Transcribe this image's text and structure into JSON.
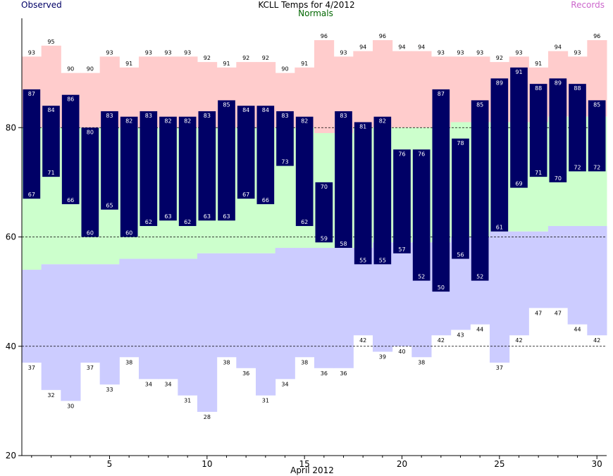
{
  "header": {
    "title": "KCLL Temps for 4/2012",
    "observed_label": "Observed",
    "normals_label": "Normals",
    "records_label": "Records"
  },
  "colors": {
    "observed": "#000066",
    "normals_text": "#006600",
    "records_text": "#cc66cc",
    "record_high_band": "#ffcccc",
    "normal_band": "#ccffcc",
    "record_low_band": "#ccccff",
    "observed_label_text": "#ffffff"
  },
  "chart_data": {
    "type": "bar",
    "title": "KCLL Temps for 4/2012",
    "xlabel": "April 2012",
    "ylabel": "",
    "x": [
      1,
      2,
      3,
      4,
      5,
      6,
      7,
      8,
      9,
      10,
      11,
      12,
      13,
      14,
      15,
      16,
      17,
      18,
      19,
      20,
      21,
      22,
      23,
      24,
      25,
      26,
      27,
      28,
      29,
      30
    ],
    "xlim": [
      0.5,
      30.5
    ],
    "ylim": [
      20,
      100
    ],
    "x_ticks": [
      5,
      10,
      15,
      20,
      25,
      30
    ],
    "y_ticks": [
      20,
      40,
      60,
      80
    ],
    "gridlines_y": [
      40,
      60,
      80
    ],
    "series": [
      {
        "name": "Observed",
        "kind": "range",
        "high": [
          87,
          84,
          86,
          80,
          83,
          82,
          83,
          82,
          82,
          83,
          85,
          84,
          84,
          83,
          82,
          70,
          83,
          81,
          82,
          76,
          76,
          87,
          78,
          85,
          89,
          91,
          88,
          89,
          88,
          85
        ],
        "low": [
          67,
          71,
          66,
          60,
          65,
          60,
          62,
          63,
          62,
          63,
          63,
          67,
          66,
          73,
          62,
          59,
          58,
          55,
          55,
          57,
          52,
          50,
          56,
          52,
          61,
          69,
          71,
          70,
          72,
          72
        ]
      },
      {
        "name": "Normals",
        "kind": "band",
        "high": [
          80,
          80,
          80,
          80,
          80,
          80,
          80,
          80,
          80,
          80,
          80,
          80,
          80,
          80,
          80,
          79,
          79,
          80,
          80,
          80,
          80,
          80,
          81,
          81,
          81,
          81,
          81,
          82,
          82,
          82
        ],
        "low": [
          54,
          55,
          55,
          55,
          55,
          56,
          56,
          56,
          56,
          57,
          57,
          57,
          57,
          58,
          58,
          58,
          58,
          58,
          59,
          59,
          59,
          59,
          60,
          60,
          61,
          61,
          61,
          62,
          62,
          62
        ]
      },
      {
        "name": "Records",
        "kind": "band",
        "high": [
          93,
          95,
          90,
          90,
          93,
          91,
          93,
          93,
          93,
          92,
          91,
          92,
          92,
          90,
          91,
          96,
          93,
          94,
          96,
          94,
          94,
          93,
          93,
          93,
          92,
          93,
          91,
          94,
          93,
          96
        ],
        "low": [
          37,
          32,
          30,
          37,
          33,
          38,
          34,
          34,
          31,
          28,
          38,
          36,
          31,
          34,
          38,
          36,
          36,
          42,
          39,
          40,
          38,
          42,
          43,
          44,
          37,
          42,
          47,
          47,
          44,
          42
        ]
      }
    ]
  }
}
